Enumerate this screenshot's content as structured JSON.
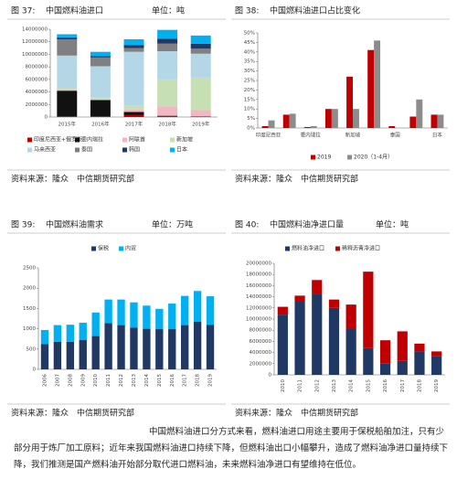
{
  "figures": [
    {
      "label": "图 37:",
      "title": "中国燃料油进口",
      "unit": "单位：吨",
      "source": "资料来源：隆众　中信期货研究部",
      "chart": {
        "type": "bar",
        "stacked": true,
        "legend": "bottom",
        "categories": [
          "2015年",
          "2016年",
          "2017年",
          "2018年",
          "2019年"
        ],
        "series": [
          {
            "name": "印度尼西亚+俄罗斯",
            "color": "#c00000",
            "values": [
              100000,
              100000,
              300000,
              100000,
              100000
            ]
          },
          {
            "name": "委内瑞拉",
            "color": "#111111",
            "values": [
              4100000,
              2600000,
              500000,
              100000,
              0
            ]
          },
          {
            "name": "阿联酋",
            "color": "#f4b6c2",
            "values": [
              100000,
              100000,
              400000,
              1500000,
              1000000
            ]
          },
          {
            "name": "新加坡",
            "color": "#c6e0b4",
            "values": [
              300000,
              300000,
              600000,
              4300000,
              5200000
            ]
          },
          {
            "name": "马来西亚",
            "color": "#b4d7e8",
            "values": [
              5200000,
              5000000,
              8600000,
              4500000,
              3800000
            ]
          },
          {
            "name": "泰国",
            "color": "#808080",
            "values": [
              2600000,
              1400000,
              600000,
              1200000,
              800000
            ]
          },
          {
            "name": "韩国",
            "color": "#1f3864",
            "values": [
              300000,
              200000,
              500000,
              800000,
              800000
            ]
          },
          {
            "name": "日本",
            "color": "#00b0f0",
            "values": [
              500000,
              700000,
              900000,
              1400000,
              1300000
            ]
          }
        ],
        "ylim": [
          0,
          14000000
        ],
        "yticks": [
          0,
          2000000,
          4000000,
          6000000,
          8000000,
          10000000,
          12000000,
          14000000
        ]
      }
    },
    {
      "label": "图 38:",
      "title": "中国燃料油进口占比变化",
      "source": "资料来源：隆众　中信期货研究部",
      "chart": {
        "type": "bar",
        "stacked": false,
        "legend": "bottom",
        "categories": [
          "印度尼西亚",
          null,
          "委内瑞拉",
          null,
          "新加坡",
          null,
          "泰国",
          null,
          "日本"
        ],
        "series": [
          {
            "name": "2019",
            "color": "#c00000",
            "values": [
              1,
              7,
              0.5,
              10,
              27,
              41,
              1,
              6,
              7
            ]
          },
          {
            "name": "2020（1-4月）",
            "color": "#8c8c8c",
            "values": [
              4,
              7.5,
              1,
              10,
              10,
              46,
              0,
              15,
              7
            ]
          }
        ],
        "ylim": [
          0,
          50
        ],
        "yticks": [
          {
            "value": 0,
            "label": "0%"
          },
          {
            "value": 5,
            "label": "5%"
          },
          {
            "value": 10,
            "label": "10%"
          },
          {
            "value": 15,
            "label": "15%"
          },
          {
            "value": 20,
            "label": "20%"
          },
          {
            "value": 25,
            "label": "25%"
          },
          {
            "value": 30,
            "label": "30%"
          },
          {
            "value": 35,
            "label": "35%"
          },
          {
            "value": 40,
            "label": "40%"
          },
          {
            "value": 45,
            "label": "45%"
          },
          {
            "value": 50,
            "label": "50%"
          }
        ]
      }
    },
    {
      "label": "图 39:",
      "title": "中国燃料油需求",
      "unit": "单位：万吨",
      "source": "资料来源：隆众　中信期货研究部",
      "chart": {
        "type": "bar",
        "stacked": true,
        "legend": "top",
        "categories": [
          "2006",
          "2007",
          "2008",
          "2009",
          "2010",
          "2011",
          "2012",
          "2013",
          "2014",
          "2015",
          "2016",
          "2017",
          "2018",
          "2019"
        ],
        "series": [
          {
            "name": "保税",
            "color": "#1f3864",
            "values": [
              620,
              680,
              680,
              720,
              820,
              1140,
              1090,
              1030,
              1000,
              990,
              990,
              1090,
              1170,
              1100
            ]
          },
          {
            "name": "内贸",
            "color": "#00b0f0",
            "values": [
              350,
              410,
              420,
              430,
              580,
              580,
              630,
              620,
              570,
              500,
              630,
              720,
              760,
              700
            ]
          }
        ],
        "ylim": [
          0,
          2500
        ],
        "yticks": [
          0,
          500,
          1000,
          1500,
          2000,
          2500
        ]
      }
    },
    {
      "label": "图 40:",
      "title": "中国燃料油净进口量",
      "unit": "单位：吨",
      "source": "资料来源：隆众　中信期货研究部",
      "chart": {
        "type": "bar",
        "stacked": true,
        "legend": "top",
        "categories": [
          "2010",
          "2011",
          "2012",
          "2013",
          "2014",
          "2015",
          "2016",
          "2017",
          "2018",
          "2019"
        ],
        "series": [
          {
            "name": "燃料油净进口",
            "color": "#1f3864",
            "values": [
              10800000,
              13200000,
              14500000,
              12000000,
              8200000,
              4800000,
              2000000,
              2500000,
              4200000,
              3300000
            ]
          },
          {
            "name": "稀释沥青净进口",
            "color": "#c00000",
            "values": [
              1400000,
              1000000,
              2500000,
              1500000,
              4400000,
              13700000,
              4200000,
              5300000,
              1400000,
              900000
            ]
          }
        ],
        "ylim": [
          0,
          20000000
        ],
        "yticks": [
          0,
          2000000,
          4000000,
          6000000,
          8000000,
          10000000,
          12000000,
          14000000,
          16000000,
          18000000,
          20000000
        ]
      }
    }
  ],
  "paragraph": "中国燃料油进口分方式来看，燃料油进口用途主要用于保税船舶加注，只有少部分用于炼厂加工原料；近年来我国燃料油进口持续下降，但燃料油出口小幅攀升，造成了燃料油净进口量持续下降，我们推测是国产燃料油开始部分取代进口燃料油，未来燃料油净进口有望维持在低位。"
}
